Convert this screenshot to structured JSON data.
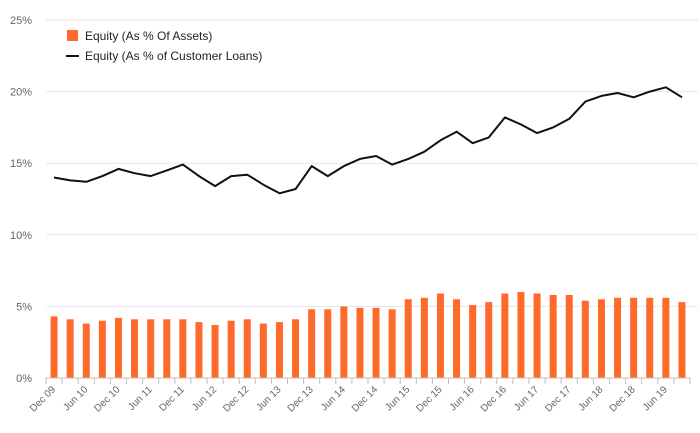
{
  "chart_data": {
    "type": "bar",
    "title": "",
    "xlabel": "",
    "ylabel": "",
    "ylim": [
      0,
      25
    ],
    "yticks": [
      "0%",
      "5%",
      "10%",
      "15%",
      "20%",
      "25%"
    ],
    "grid": true,
    "legend": "top-left",
    "categories": [
      "Dec 09",
      "Mar 10",
      "Jun 10",
      "Sep 10",
      "Dec 10",
      "Mar 11",
      "Jun 11",
      "Sep 11",
      "Dec 11",
      "Mar 12",
      "Jun 12",
      "Sep 12",
      "Dec 12",
      "Mar 13",
      "Jun 13",
      "Sep 13",
      "Dec 13",
      "Mar 14",
      "Jun 14",
      "Sep 14",
      "Dec 14",
      "Mar 15",
      "Jun 15",
      "Sep 15",
      "Dec 15",
      "Mar 16",
      "Jun 16",
      "Sep 16",
      "Dec 16",
      "Mar 17",
      "Jun 17",
      "Sep 17",
      "Dec 17",
      "Mar 18",
      "Jun 18",
      "Sep 18",
      "Dec 18",
      "Mar 19",
      "Jun 19",
      "Sep 19"
    ],
    "tick_labels": [
      "Dec 09",
      "Jun 10",
      "Dec 10",
      "Jun 11",
      "Dec 11",
      "Jun 12",
      "Dec 12",
      "Jun 13",
      "Dec 13",
      "Jun 14",
      "Dec 14",
      "Jun 15",
      "Dec 15",
      "Jun 16",
      "Dec 16",
      "Jun 17",
      "Dec 17",
      "Jun 18",
      "Dec 18",
      "Jun 19"
    ],
    "series": [
      {
        "name": "Equity (As % Of Assets)",
        "type": "bar",
        "color": "#ff6a2b",
        "values": [
          4.3,
          4.1,
          3.8,
          4.0,
          4.2,
          4.1,
          4.1,
          4.1,
          4.1,
          3.9,
          3.7,
          4.0,
          4.1,
          3.8,
          3.9,
          4.1,
          4.8,
          4.8,
          5.0,
          4.9,
          4.9,
          4.8,
          5.5,
          5.6,
          5.9,
          5.5,
          5.1,
          5.3,
          5.9,
          6.0,
          5.9,
          5.8,
          5.8,
          5.4,
          5.5,
          5.6,
          5.6,
          5.6,
          5.6,
          5.3
        ]
      },
      {
        "name": "Equity (As % of Customer Loans)",
        "type": "line",
        "color": "#111111",
        "values": [
          14.0,
          13.8,
          13.7,
          14.1,
          14.6,
          14.3,
          14.1,
          14.5,
          14.9,
          14.1,
          13.4,
          14.1,
          14.2,
          13.5,
          12.9,
          13.2,
          14.8,
          14.1,
          14.8,
          15.3,
          15.5,
          14.9,
          15.3,
          15.8,
          16.6,
          17.2,
          16.4,
          16.8,
          18.2,
          17.7,
          17.1,
          17.5,
          18.1,
          19.3,
          19.7,
          19.9,
          19.6,
          20.0,
          20.3,
          19.6
        ]
      }
    ]
  }
}
